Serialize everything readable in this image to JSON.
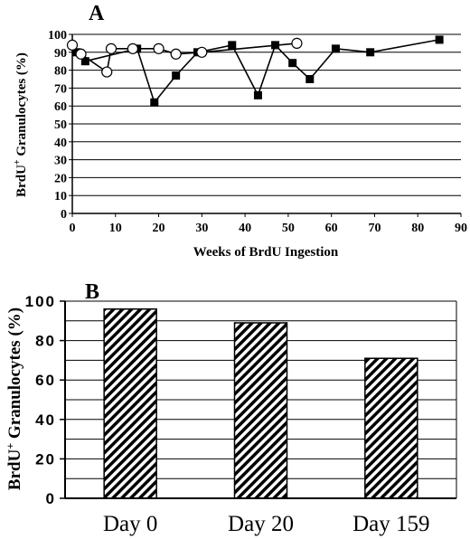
{
  "chart_data": [
    {
      "panel": "A",
      "type": "line",
      "xlabel": "Weeks of BrdU Ingestion",
      "ylabel_main": "BrdU",
      "ylabel_sup": "+",
      "ylabel_rest": " Granulocytes (%)",
      "xlim": [
        0,
        90
      ],
      "ylim": [
        0,
        100
      ],
      "xticks": [
        "0",
        "10",
        "20",
        "30",
        "40",
        "50",
        "60",
        "70",
        "80",
        "90"
      ],
      "yticks": [
        "0",
        "10",
        "20",
        "30",
        "40",
        "50",
        "60",
        "70",
        "80",
        "90",
        "100"
      ],
      "grid": "horizontal",
      "series": [
        {
          "marker": "filled-square",
          "x": [
            1,
            3,
            15,
            19,
            24,
            29,
            37,
            43,
            47,
            51,
            55,
            61,
            69,
            85
          ],
          "y": [
            90,
            85,
            92,
            62,
            77,
            90,
            94,
            66,
            94,
            84,
            75,
            92,
            90,
            97
          ]
        },
        {
          "marker": "open-circle",
          "x": [
            0,
            2,
            8,
            9,
            14,
            20,
            24,
            30,
            52
          ],
          "y": [
            94,
            89,
            79,
            92,
            92,
            92,
            89,
            90,
            95
          ]
        }
      ]
    },
    {
      "panel": "B",
      "type": "bar",
      "ylabel_main": "BrdU",
      "ylabel_sup": "+",
      "ylabel_rest": " Granulocytes (%)",
      "categories": [
        "Day 0",
        "Day 20",
        "Day 159"
      ],
      "values": [
        96,
        89,
        71
      ],
      "ylim": [
        0,
        100
      ],
      "yticks": [
        "0",
        "20",
        "40",
        "60",
        "80",
        "100"
      ],
      "grid": "horizontal",
      "fill": "diagonal-hatch"
    }
  ]
}
